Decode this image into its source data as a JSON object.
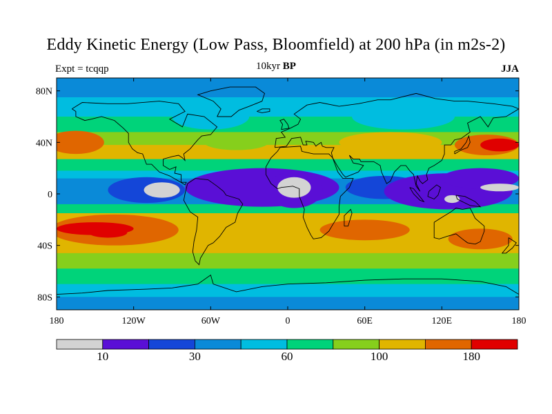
{
  "header": {
    "title": "Eddy Kinetic Energy (Low Pass, Bloomfield) at 200 hPa (in m2s-2)",
    "experiment": "Expt = tcqqp",
    "period_prefix": "10kyr",
    "period_suffix": "BP",
    "season": "JJA"
  },
  "axes": {
    "lat_ticks": [
      {
        "label": "80N",
        "value": 80
      },
      {
        "label": "40N",
        "value": 40
      },
      {
        "label": "0",
        "value": 0
      },
      {
        "label": "40S",
        "value": -40
      },
      {
        "label": "80S",
        "value": -80
      }
    ],
    "lon_ticks": [
      {
        "label": "180",
        "value": -180
      },
      {
        "label": "120W",
        "value": -120
      },
      {
        "label": "60W",
        "value": -60
      },
      {
        "label": "0",
        "value": 0
      },
      {
        "label": "60E",
        "value": 60
      },
      {
        "label": "120E",
        "value": 120
      },
      {
        "label": "180",
        "value": 180
      }
    ]
  },
  "colorbar": {
    "colors": [
      "#d3d3d3",
      "#5a0fd6",
      "#1446d8",
      "#0a8ad8",
      "#00bde0",
      "#00d37a",
      "#86cf1c",
      "#e0b500",
      "#e06600",
      "#e00000"
    ],
    "labels": [
      {
        "text": "10",
        "boundary": 1
      },
      {
        "text": "30",
        "boundary": 3
      },
      {
        "text": "60",
        "boundary": 5
      },
      {
        "text": "100",
        "boundary": 7
      },
      {
        "text": "180",
        "boundary": 9
      }
    ]
  },
  "map_data": {
    "projection": "cylindrical-equidistant",
    "lon_range": [
      -180,
      180
    ],
    "lat_range": [
      -90,
      90
    ],
    "background_class": 4,
    "bands": [
      {
        "lat": [
          70,
          90
        ],
        "cls": 3
      },
      {
        "lat": [
          58,
          75
        ],
        "cls": 4
      },
      {
        "lat": [
          45,
          60
        ],
        "cls": 5
      },
      {
        "lat": [
          35,
          48
        ],
        "cls": 6
      },
      {
        "lat": [
          25,
          38
        ],
        "cls": 7
      },
      {
        "lat": [
          15,
          27
        ],
        "cls": 5
      },
      {
        "lat": [
          8,
          18
        ],
        "cls": 4
      },
      {
        "lat": [
          -12,
          12
        ],
        "cls": 3
      },
      {
        "lat": [
          -18,
          -8
        ],
        "cls": 5
      },
      {
        "lat": [
          -30,
          -15
        ],
        "cls": 7
      },
      {
        "lat": [
          -48,
          -28
        ],
        "cls": 7
      },
      {
        "lat": [
          -60,
          -46
        ],
        "cls": 6
      },
      {
        "lat": [
          -72,
          -58
        ],
        "cls": 5
      },
      {
        "lat": [
          -82,
          -70
        ],
        "cls": 4
      },
      {
        "lat": [
          -90,
          -80
        ],
        "cls": 3
      }
    ],
    "blobs": [
      {
        "lon": -20,
        "lat": 5,
        "rx": 60,
        "ry": 15,
        "cls": 1
      },
      {
        "lon": -110,
        "lat": 3,
        "rx": 30,
        "ry": 10,
        "cls": 2
      },
      {
        "lon": 5,
        "lat": 3,
        "rx": 22,
        "ry": 14,
        "cls": 1
      },
      {
        "lon": 75,
        "lat": 5,
        "rx": 30,
        "ry": 9,
        "cls": 2
      },
      {
        "lon": 125,
        "lat": 2,
        "rx": 50,
        "ry": 14,
        "cls": 1
      },
      {
        "lon": 150,
        "lat": 12,
        "rx": 30,
        "ry": 8,
        "cls": 1
      },
      {
        "lon": -98,
        "lat": 3,
        "rx": 14,
        "ry": 6,
        "cls": 0
      },
      {
        "lon": 5,
        "lat": 5,
        "rx": 13,
        "ry": 8,
        "cls": 0
      },
      {
        "lon": 165,
        "lat": 5,
        "rx": 15,
        "ry": 3,
        "cls": 0
      },
      {
        "lon": 128,
        "lat": -4,
        "rx": 6,
        "ry": 3,
        "cls": 0
      },
      {
        "lon": -165,
        "lat": 40,
        "rx": 22,
        "ry": 9,
        "cls": 8
      },
      {
        "lon": 155,
        "lat": 38,
        "rx": 25,
        "ry": 8,
        "cls": 8
      },
      {
        "lon": 165,
        "lat": 38,
        "rx": 15,
        "ry": 5,
        "cls": 9
      },
      {
        "lon": -135,
        "lat": -28,
        "rx": 50,
        "ry": 12,
        "cls": 8
      },
      {
        "lon": -150,
        "lat": -27,
        "rx": 30,
        "ry": 5,
        "cls": 9
      },
      {
        "lon": -140,
        "lat": -30,
        "rx": 15,
        "ry": 4,
        "cls": 9
      },
      {
        "lon": 150,
        "lat": -35,
        "rx": 25,
        "ry": 8,
        "cls": 8
      },
      {
        "lon": 60,
        "lat": -28,
        "rx": 35,
        "ry": 8,
        "cls": 8
      },
      {
        "lon": -40,
        "lat": 40,
        "rx": 25,
        "ry": 6,
        "cls": 6
      },
      {
        "lon": 80,
        "lat": 40,
        "rx": 40,
        "ry": 8,
        "cls": 7
      },
      {
        "lon": -60,
        "lat": 60,
        "rx": 30,
        "ry": 10,
        "cls": 4
      },
      {
        "lon": 90,
        "lat": 60,
        "rx": 40,
        "ry": 10,
        "cls": 4
      }
    ]
  }
}
